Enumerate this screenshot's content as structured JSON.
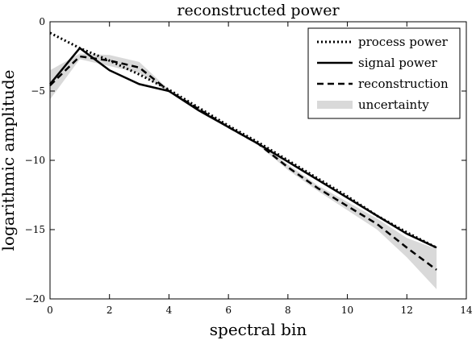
{
  "chart_data": {
    "type": "line",
    "title": "reconstructed power",
    "xlabel": "spectral bin",
    "ylabel": "logarithmic amplitude",
    "xlim": [
      0,
      14
    ],
    "ylim": [
      -20,
      0
    ],
    "xticks": [
      "0",
      "2",
      "4",
      "6",
      "8",
      "10",
      "12",
      "14"
    ],
    "yticks": [
      "0",
      "−5",
      "−10",
      "−15",
      "−20"
    ],
    "grid": false,
    "legend_position": "top-right",
    "series": [
      {
        "name": "process power",
        "style": "dotted",
        "color": "#000000",
        "x": [
          0,
          1,
          2,
          3,
          4,
          5,
          6,
          7,
          8,
          9,
          10,
          11,
          12,
          13
        ],
        "y": [
          -0.8,
          -1.9,
          -2.8,
          -3.8,
          -4.9,
          -6.2,
          -7.5,
          -8.7,
          -10.0,
          -11.3,
          -12.6,
          -14.0,
          -15.2,
          -16.3
        ]
      },
      {
        "name": "signal power",
        "style": "solid",
        "color": "#000000",
        "x": [
          0,
          1,
          2,
          3,
          4,
          5,
          6,
          7,
          8,
          9,
          10,
          11,
          12,
          13
        ],
        "y": [
          -4.5,
          -1.9,
          -3.5,
          -4.5,
          -5.0,
          -6.4,
          -7.6,
          -8.8,
          -10.1,
          -11.4,
          -12.7,
          -14.0,
          -15.3,
          -16.3
        ]
      },
      {
        "name": "reconstruction",
        "style": "dashed",
        "color": "#000000",
        "x": [
          0,
          1,
          2,
          3,
          4,
          5,
          6,
          7,
          8,
          9,
          10,
          11,
          12,
          13
        ],
        "y": [
          -4.6,
          -2.5,
          -2.8,
          -3.3,
          -5.0,
          -6.3,
          -7.6,
          -8.8,
          -10.5,
          -12.0,
          -13.3,
          -14.6,
          -16.3,
          -17.9
        ]
      }
    ],
    "uncertainty": {
      "name": "uncertainty",
      "color": "#d9d9d9",
      "x": [
        0,
        1,
        2,
        3,
        4,
        5,
        6,
        7,
        8,
        9,
        10,
        11,
        12,
        13
      ],
      "upper": [
        -3.5,
        -2.3,
        -2.4,
        -2.9,
        -4.9,
        -6.2,
        -7.5,
        -8.7,
        -10.3,
        -11.8,
        -13.0,
        -14.2,
        -15.6,
        -16.4
      ],
      "lower": [
        -5.6,
        -2.7,
        -3.2,
        -3.7,
        -5.1,
        -6.4,
        -7.7,
        -8.9,
        -10.7,
        -12.2,
        -13.6,
        -15.0,
        -17.0,
        -19.3
      ]
    },
    "legend": [
      {
        "label": "process power",
        "style": "dotted"
      },
      {
        "label": "signal power",
        "style": "solid"
      },
      {
        "label": "reconstruction",
        "style": "dashed"
      },
      {
        "label": "uncertainty",
        "style": "band"
      }
    ]
  }
}
